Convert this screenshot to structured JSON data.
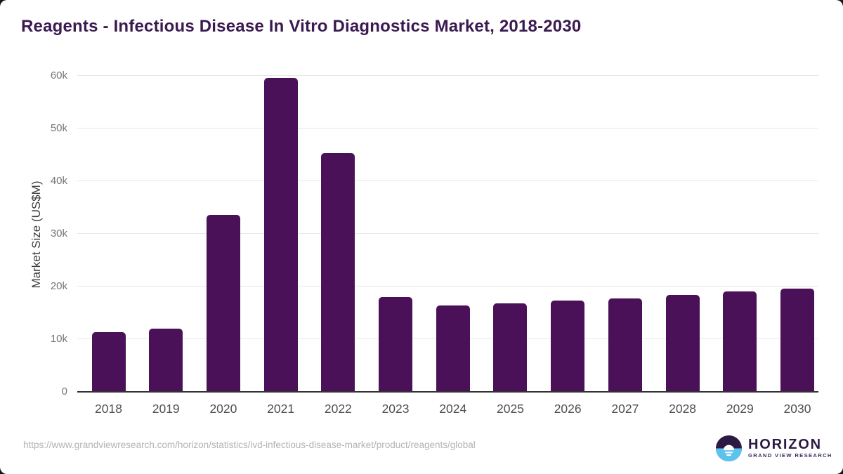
{
  "title": "Reagents - Infectious Disease In Vitro Diagnostics Market, 2018-2030",
  "chart_data": {
    "type": "bar",
    "categories": [
      "2018",
      "2019",
      "2020",
      "2021",
      "2022",
      "2023",
      "2024",
      "2025",
      "2026",
      "2027",
      "2028",
      "2029",
      "2030"
    ],
    "values": [
      11300,
      11900,
      33600,
      59500,
      45300,
      18000,
      16400,
      16800,
      17300,
      17700,
      18400,
      19000,
      19500
    ],
    "title": "Reagents - Infectious Disease In Vitro Diagnostics Market, 2018-2030",
    "xlabel": "",
    "ylabel": "Market Size (US$M)",
    "ylim": [
      0,
      60000
    ],
    "yticks": {
      "values": [
        0,
        10000,
        20000,
        30000,
        40000,
        50000,
        60000
      ],
      "labels": [
        "0",
        "10k",
        "20k",
        "30k",
        "40k",
        "50k",
        "60k"
      ]
    },
    "grid": true,
    "legend": "none",
    "bar_color": "#4a1159"
  },
  "footer": {
    "source_url": "https://www.grandviewresearch.com/horizon/statistics/ivd-infectious-disease-market/product/reagents/global",
    "logo": {
      "name": "HORIZON",
      "subtitle": "GRAND VIEW RESEARCH"
    }
  },
  "colors": {
    "title_text": "#3a1a50",
    "bar": "#4a1159",
    "gridline": "#e8e8e8",
    "axis_line": "#333333",
    "y_tick_text": "#757575",
    "x_tick_text": "#4f4f4f",
    "url_text": "#b3b3b3",
    "logo_purple": "#2c1a45",
    "logo_blue": "#5cc3ef"
  }
}
